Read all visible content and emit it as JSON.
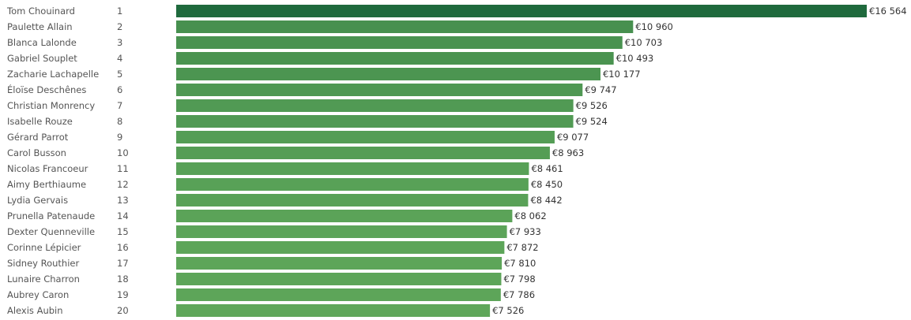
{
  "chart_data": {
    "type": "bar",
    "orientation": "horizontal",
    "categories": [
      "Tom Chouinard",
      "Paulette Allain",
      "Blanca Lalonde",
      "Gabriel Souplet",
      "Zacharie Lachapelle",
      "Éloïse Deschênes",
      "Christian Monrency",
      "Isabelle Rouze",
      "Gérard Parrot",
      "Carol Busson",
      "Nicolas Francoeur",
      "Aimy Berthiaume",
      "Lydia Gervais",
      "Prunella Patenaude",
      "Dexter Quenneville",
      "Corinne Lépicier",
      "Sidney Routhier",
      "Lunaire Charron",
      "Aubrey Caron",
      "Alexis Aubin"
    ],
    "ranks": [
      "1",
      "2",
      "3",
      "4",
      "5",
      "6",
      "7",
      "8",
      "9",
      "10",
      "11",
      "12",
      "13",
      "14",
      "15",
      "16",
      "17",
      "18",
      "19",
      "20"
    ],
    "values": [
      16564,
      10960,
      10703,
      10493,
      10177,
      9747,
      9526,
      9524,
      9077,
      8963,
      8461,
      8450,
      8442,
      8062,
      7933,
      7872,
      7810,
      7798,
      7786,
      7526
    ],
    "value_labels": [
      "€16 564",
      "€10 960",
      "€10 703",
      "€10 493",
      "€10 177",
      "€9 747",
      "€9 526",
      "€9 524",
      "€9 077",
      "€8 963",
      "€8 461",
      "€8 450",
      "€8 442",
      "€8 062",
      "€7 933",
      "€7 872",
      "€7 810",
      "€7 798",
      "€7 786",
      "€7 526"
    ],
    "xlim": [
      0,
      16564
    ],
    "title": "",
    "xlabel": "",
    "ylabel": "",
    "grid": false,
    "colors": {
      "low": "#5fa75a",
      "high": "#1f6a3d"
    }
  }
}
